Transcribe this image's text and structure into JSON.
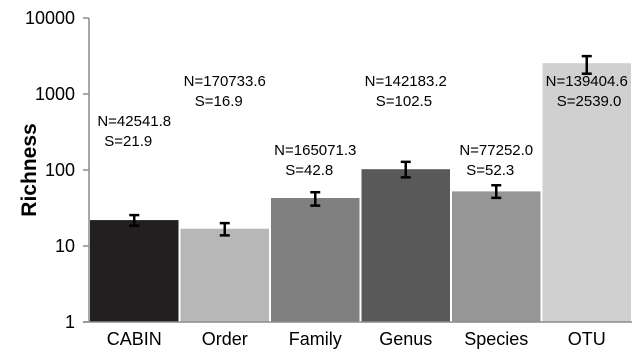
{
  "chart_data": {
    "type": "bar",
    "y_scale": "log",
    "ylim": [
      1,
      10000
    ],
    "ylabel": "Richness",
    "xlabel": "",
    "title": "",
    "grid": false,
    "legend": "none",
    "y_ticks": [
      "1",
      "10",
      "100",
      "1000",
      "10000"
    ],
    "categories": [
      "CABIN",
      "Order",
      "Family",
      "Genus",
      "Species",
      "OTU"
    ],
    "values": [
      21.9,
      16.9,
      42.8,
      102.5,
      52.3,
      2539.0
    ],
    "error_low": [
      18.5,
      13.8,
      34.0,
      80.0,
      43.0,
      1850.0
    ],
    "error_high": [
      25.5,
      20.0,
      51.0,
      128.0,
      63.0,
      3150.0
    ],
    "annotations": [
      {
        "n": "N=42541.8",
        "s": "S=21.9"
      },
      {
        "n": "N=170733.6",
        "s": "S=16.9"
      },
      {
        "n": "N=165071.3",
        "s": "S=42.8"
      },
      {
        "n": "N=142183.2",
        "s": "S=102.5"
      },
      {
        "n": "N=77252.0",
        "s": "S=52.3"
      },
      {
        "n": "N=139404.6",
        "s": "S=2539.0"
      }
    ],
    "colors": [
      "#231f20",
      "#b7b7b7",
      "#808080",
      "#595959",
      "#969696",
      "#d0d0d0"
    ]
  }
}
